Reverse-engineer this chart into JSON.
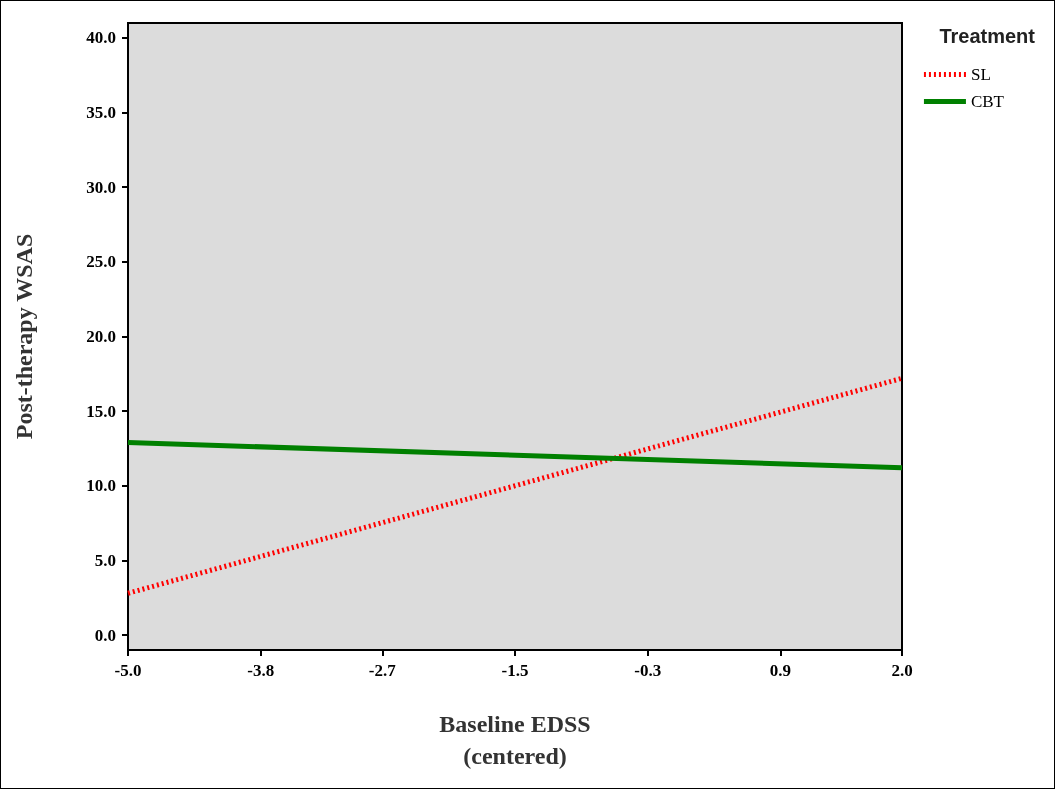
{
  "chart_data": {
    "type": "line",
    "xlabel": "Baseline EDSS\n(centered)",
    "ylabel": "Post-therapy WSAS",
    "legend_title": "Treatment",
    "legend": "top right",
    "grid": false,
    "marker": "none",
    "xlim": [
      -5,
      2
    ],
    "xticks": [
      {
        "value": -5,
        "label": "-5.0"
      },
      {
        "value": -3.8,
        "label": "-3.8"
      },
      {
        "value": -2.7,
        "label": "-2.7"
      },
      {
        "value": -1.5,
        "label": "-1.5"
      },
      {
        "value": -0.3,
        "label": "-0.3"
      },
      {
        "value": 0.9,
        "label": "0.9"
      },
      {
        "value": 2,
        "label": "2.0"
      }
    ],
    "ylim": [
      -1,
      41
    ],
    "yticks": [
      {
        "value": 0,
        "label": "0.0"
      },
      {
        "value": 5,
        "label": "5.0"
      },
      {
        "value": 10,
        "label": "10.0"
      },
      {
        "value": 15,
        "label": "15.0"
      },
      {
        "value": 20,
        "label": "20.0"
      },
      {
        "value": 25,
        "label": "25.0"
      },
      {
        "value": 30,
        "label": "30.0"
      },
      {
        "value": 35,
        "label": "35.0"
      },
      {
        "value": 40,
        "label": "40.0"
      }
    ],
    "x": [
      -5,
      2
    ],
    "series": [
      {
        "name": "SL",
        "color": "#ff0000",
        "line_style": "dotted",
        "values": [
          2.8,
          17.2
        ]
      },
      {
        "name": "CBT",
        "color": "#008000",
        "line_style": "solid",
        "values": [
          12.9,
          11.2
        ]
      }
    ]
  }
}
